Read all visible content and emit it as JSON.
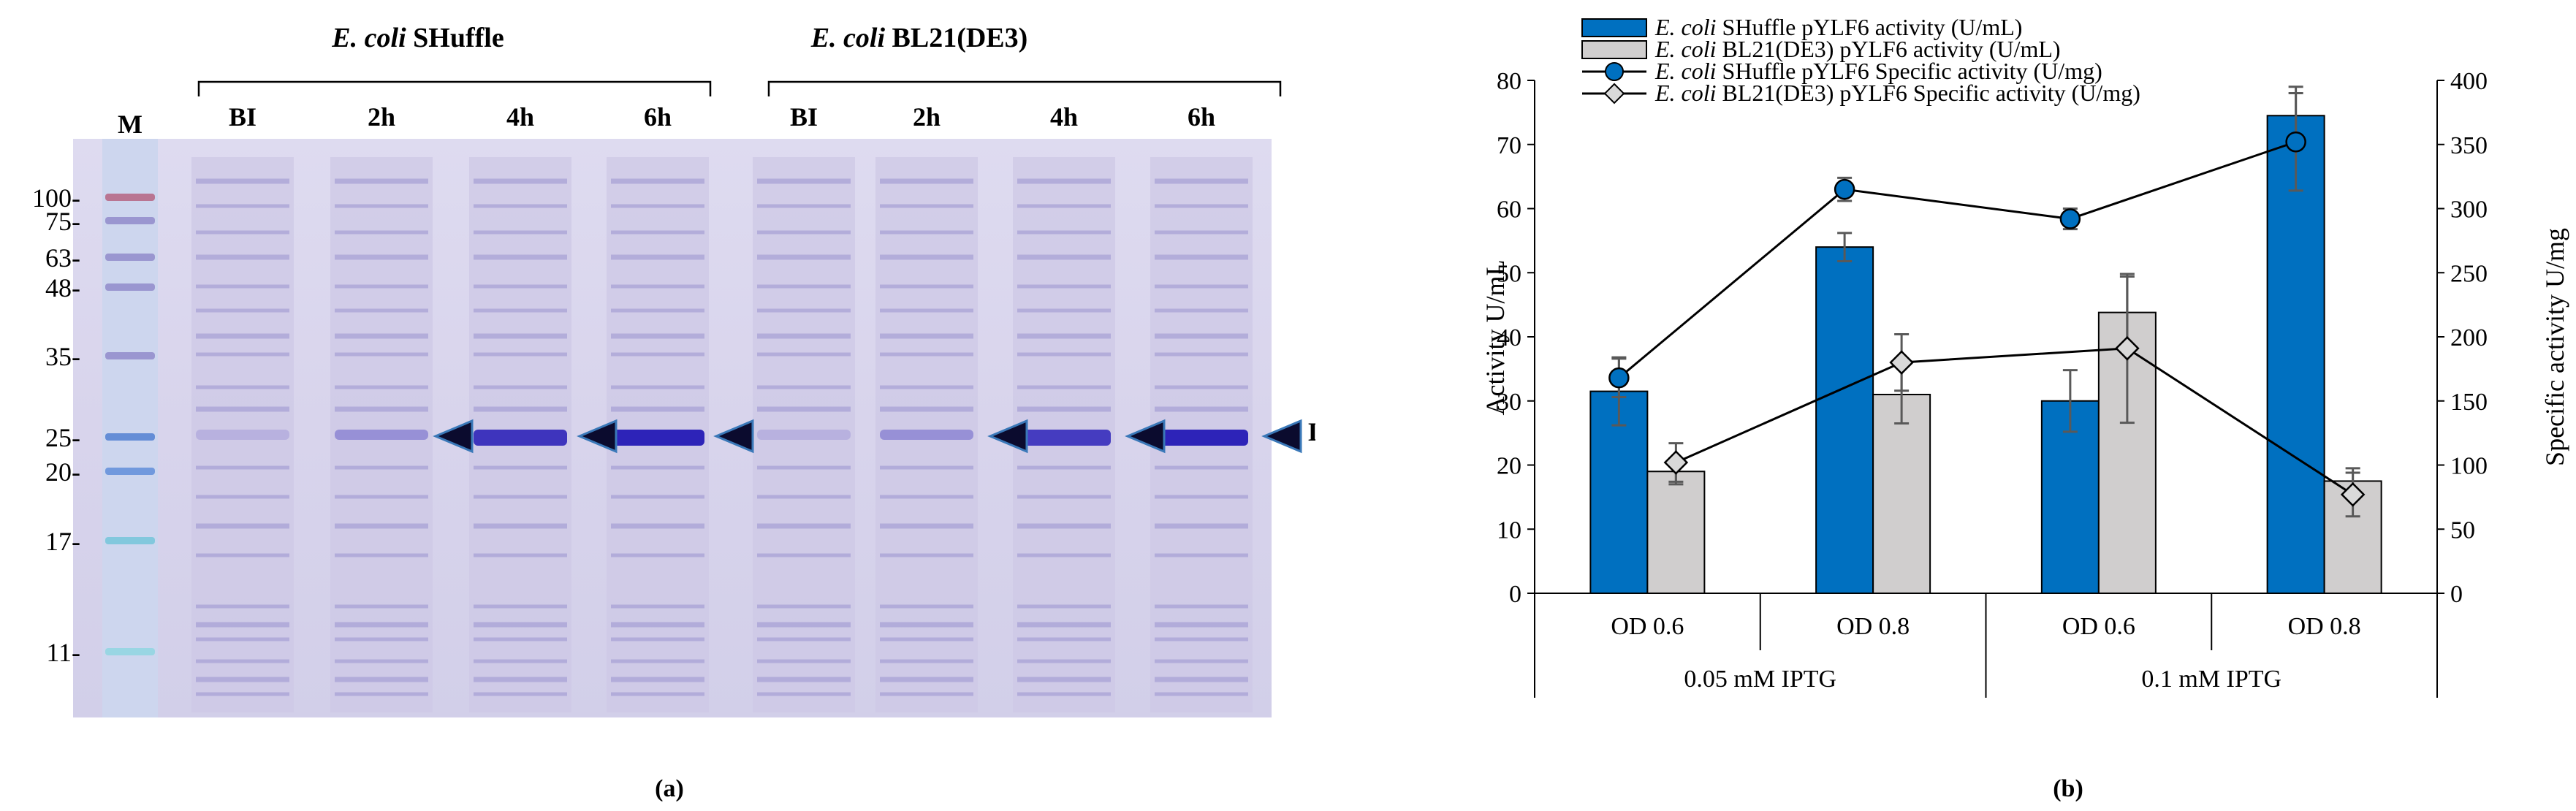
{
  "panel_a": {
    "label": "(a)",
    "groups": [
      {
        "strain_italic": "E. coli",
        "strain_rest": " SHuffle"
      },
      {
        "strain_italic": "E. coli",
        "strain_rest": " BL21(DE3)"
      }
    ],
    "marker_lane": "M",
    "lanes": [
      "BI",
      "2h",
      "4h",
      "6h",
      "BI",
      "2h",
      "4h",
      "6h"
    ],
    "markers": [
      "100-",
      "75-",
      "63-",
      "48-",
      "35-",
      "25-",
      "20-",
      "17-",
      "11-"
    ],
    "band_label": "LipA",
    "gel_colors": {
      "background": "#d9d5ec",
      "band": "#8f88c9",
      "lipa": "#2d23b8",
      "arrow": "#0b0b2e",
      "arrow_outline": "#3a78b8"
    }
  },
  "panel_b": {
    "label": "(b)"
  },
  "chart_data": {
    "type": "bar",
    "title": "",
    "categories": [
      "OD 0.6",
      "OD 0.8",
      "OD 0.6",
      "OD 0.8"
    ],
    "category_groups": [
      {
        "label": "0.05 mM IPTG",
        "span": [
          0,
          1
        ]
      },
      {
        "label": "0.1 mM IPTG",
        "span": [
          2,
          3
        ]
      }
    ],
    "ylabel": "Activity U/mL",
    "ylim": [
      0,
      80
    ],
    "yticks": [
      0,
      10,
      20,
      30,
      40,
      50,
      60,
      70,
      80
    ],
    "y2label": "Specific activity U/mg",
    "y2lim": [
      0,
      400
    ],
    "y2ticks": [
      0,
      50,
      100,
      150,
      200,
      250,
      300,
      350,
      400
    ],
    "series": [
      {
        "name_italic": "E. coli",
        "name_rest": " SHuffle pYLF6 activity (U/mL)",
        "kind": "bar",
        "axis": "left",
        "color": "#0070c0",
        "values": [
          31.5,
          54,
          30,
          74.5
        ],
        "errors": [
          5.3,
          2.2,
          4.8,
          4.5
        ]
      },
      {
        "name_italic": "E. coli",
        "name_rest": " BL21(DE3) pYLF6 activity (U/mL)",
        "kind": "bar",
        "axis": "left",
        "color": "#d0cece",
        "values": [
          19,
          31,
          43.8,
          17.5
        ],
        "errors": [
          2,
          4.5,
          5.6,
          2
        ]
      },
      {
        "name_italic": "E. coli",
        "name_rest": " SHuffle pYLF6 Specific activity (U/mg)",
        "kind": "line",
        "axis": "right",
        "color": "#0070c0",
        "marker": "circle",
        "values": [
          168,
          315,
          292,
          352
        ],
        "errors": [
          15,
          9,
          8,
          38
        ]
      },
      {
        "name_italic": "E. coli",
        "name_rest": " BL21(DE3) pYLF6 Specific activity (U/mg)",
        "kind": "line",
        "axis": "right",
        "color": "#d9d9d9",
        "marker": "diamond",
        "values": [
          102,
          180,
          191,
          77
        ],
        "errors": [
          15,
          22,
          58,
          17
        ]
      }
    ]
  }
}
